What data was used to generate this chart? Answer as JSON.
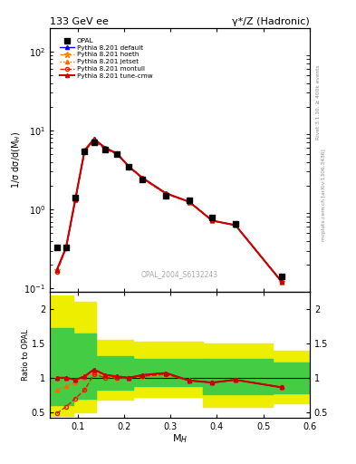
{
  "title_top": "133 GeV ee",
  "title_right": "γ*/Z (Hadronic)",
  "ylabel_main": "1/σ dσ/d(M$_{H}$)",
  "ylabel_ratio": "Ratio to OPAL",
  "xlabel": "M$_{H}$",
  "watermark": "OPAL_2004_S6132243",
  "right_label": "mcplots.cern.ch [arXiv:1306.3436]",
  "right_label2": "Rivet 3.1.10, ≥ 400k events",
  "opal_x": [
    0.055,
    0.075,
    0.095,
    0.115,
    0.135,
    0.16,
    0.185,
    0.21,
    0.24,
    0.29,
    0.34,
    0.39,
    0.44,
    0.54
  ],
  "opal_y": [
    0.33,
    0.33,
    1.4,
    5.5,
    7.0,
    5.8,
    5.0,
    3.5,
    2.4,
    1.5,
    1.3,
    0.78,
    0.65,
    0.14
  ],
  "tune_cmw_x": [
    0.055,
    0.075,
    0.095,
    0.115,
    0.135,
    0.16,
    0.185,
    0.21,
    0.24,
    0.29,
    0.34,
    0.39,
    0.44,
    0.54
  ],
  "tune_cmw_y": [
    0.17,
    0.33,
    1.35,
    5.6,
    7.8,
    6.0,
    5.1,
    3.5,
    2.5,
    1.6,
    1.25,
    0.72,
    0.63,
    0.12
  ],
  "default_x": [
    0.055,
    0.075,
    0.095,
    0.115,
    0.135,
    0.16,
    0.185,
    0.21,
    0.24,
    0.29,
    0.34,
    0.39,
    0.44,
    0.54
  ],
  "default_y": [
    0.17,
    0.33,
    1.35,
    5.6,
    7.8,
    6.0,
    5.1,
    3.5,
    2.5,
    1.6,
    1.25,
    0.72,
    0.63,
    0.12
  ],
  "hoeth_x": [
    0.055,
    0.075,
    0.095,
    0.115,
    0.135,
    0.16,
    0.185,
    0.21,
    0.24,
    0.29,
    0.34,
    0.39,
    0.44,
    0.54
  ],
  "hoeth_y": [
    0.17,
    0.33,
    1.35,
    5.6,
    7.5,
    5.9,
    5.0,
    3.5,
    2.45,
    1.58,
    1.25,
    0.72,
    0.63,
    0.12
  ],
  "jetset_x": [
    0.055,
    0.075,
    0.095,
    0.115,
    0.135,
    0.16,
    0.185,
    0.21,
    0.24,
    0.29,
    0.34,
    0.39,
    0.44,
    0.54
  ],
  "jetset_y": [
    0.17,
    0.33,
    1.35,
    5.6,
    7.5,
    5.9,
    5.0,
    3.5,
    2.45,
    1.58,
    1.25,
    0.72,
    0.63,
    0.12
  ],
  "montull_x": [
    0.055,
    0.075,
    0.095,
    0.115,
    0.135,
    0.16,
    0.185,
    0.21,
    0.24,
    0.29,
    0.34,
    0.39,
    0.44,
    0.54
  ],
  "montull_y": [
    0.16,
    0.32,
    1.3,
    5.5,
    7.3,
    5.8,
    5.0,
    3.5,
    2.45,
    1.58,
    1.25,
    0.72,
    0.63,
    0.12
  ],
  "ratio_cmw_x": [
    0.055,
    0.075,
    0.095,
    0.115,
    0.135,
    0.16,
    0.185,
    0.21,
    0.24,
    0.29,
    0.34,
    0.39,
    0.44,
    0.54
  ],
  "ratio_cmw_y": [
    1.0,
    1.0,
    0.97,
    1.02,
    1.12,
    1.04,
    1.02,
    1.0,
    1.04,
    1.07,
    0.96,
    0.93,
    0.97,
    0.86
  ],
  "ratio_default_x": [
    0.055,
    0.075,
    0.095,
    0.115,
    0.135,
    0.16,
    0.185,
    0.21,
    0.24,
    0.29,
    0.34,
    0.39,
    0.44,
    0.54
  ],
  "ratio_default_y": [
    1.0,
    1.0,
    0.97,
    1.02,
    1.12,
    1.04,
    1.02,
    1.0,
    1.04,
    1.07,
    0.96,
    0.93,
    0.97,
    0.86
  ],
  "ratio_hoeth_x": [
    0.055,
    0.075,
    0.095,
    0.115,
    0.135,
    0.16,
    0.185,
    0.21,
    0.24,
    0.29,
    0.34,
    0.39,
    0.44,
    0.54
  ],
  "ratio_hoeth_y": [
    1.0,
    0.98,
    0.96,
    1.02,
    1.07,
    1.02,
    1.0,
    1.0,
    1.02,
    1.05,
    0.96,
    0.93,
    0.97,
    0.86
  ],
  "ratio_jetset_x": [
    0.055,
    0.075,
    0.095,
    0.115,
    0.135,
    0.16,
    0.185,
    0.21,
    0.24,
    0.29,
    0.34,
    0.39,
    0.44,
    0.54
  ],
  "ratio_jetset_y": [
    0.82,
    0.88,
    0.93,
    1.0,
    1.07,
    1.02,
    1.0,
    1.0,
    1.02,
    1.05,
    0.96,
    0.93,
    0.97,
    0.86
  ],
  "ratio_montull_x": [
    0.055,
    0.075,
    0.095,
    0.115,
    0.135,
    0.16,
    0.185,
    0.21,
    0.24,
    0.29,
    0.34,
    0.39,
    0.44,
    0.54
  ],
  "ratio_montull_y": [
    0.48,
    0.58,
    0.7,
    0.82,
    1.05,
    1.0,
    1.0,
    1.0,
    1.02,
    1.05,
    0.96,
    0.93,
    0.97,
    0.86
  ],
  "xlim": [
    0.04,
    0.6
  ],
  "ylim_main": [
    0.09,
    200
  ],
  "ylim_ratio": [
    0.42,
    2.25
  ],
  "color_default": "#0000ee",
  "color_hoeth": "#ff8800",
  "color_jetset": "#ff6600",
  "color_montull": "#dd2200",
  "color_cmw": "#cc0000",
  "color_opal": "#000000",
  "color_green": "#44cc44",
  "color_yellow": "#eeee00"
}
